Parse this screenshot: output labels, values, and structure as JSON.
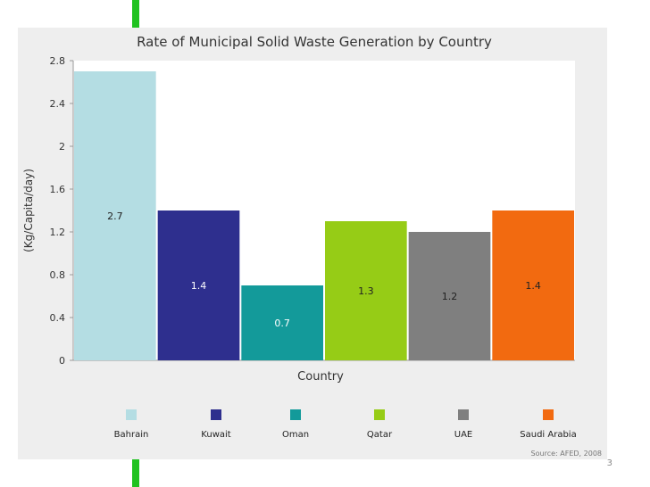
{
  "slide": {
    "page_number": "3",
    "accent_color": "#1fc21f"
  },
  "chart_data": {
    "type": "bar",
    "title": "Rate of Municipal Solid Waste Generation by Country",
    "xlabel": "Country",
    "ylabel": "(Kg/Capita/day)",
    "categories": [
      "Bahrain",
      "Kuwait",
      "Oman",
      "Qatar",
      "UAE",
      "Saudi Arabia"
    ],
    "values": [
      2.7,
      1.4,
      0.7,
      1.3,
      1.2,
      1.4
    ],
    "data_labels": [
      "2.7",
      "1.4",
      "0.7",
      "1.3",
      "1.2",
      "1.4"
    ],
    "colors": [
      "#b4dde3",
      "#2e2f8e",
      "#139a9a",
      "#96cc16",
      "#7f7f7f",
      "#f26a10"
    ],
    "label_colors": [
      "#222222",
      "#ffffff",
      "#ffffff",
      "#222222",
      "#222222",
      "#222222"
    ],
    "ylim": [
      0,
      2.8
    ],
    "yticks": [
      "0",
      "0.4",
      "0.8",
      "1.2",
      "1.6",
      "2",
      "2.4",
      "2.8"
    ],
    "ytick_values": [
      0,
      0.4,
      0.8,
      1.2,
      1.6,
      2,
      2.4,
      2.8
    ],
    "grid": false,
    "legend_position": "bottom",
    "source": "Source: AFED, 2008"
  }
}
